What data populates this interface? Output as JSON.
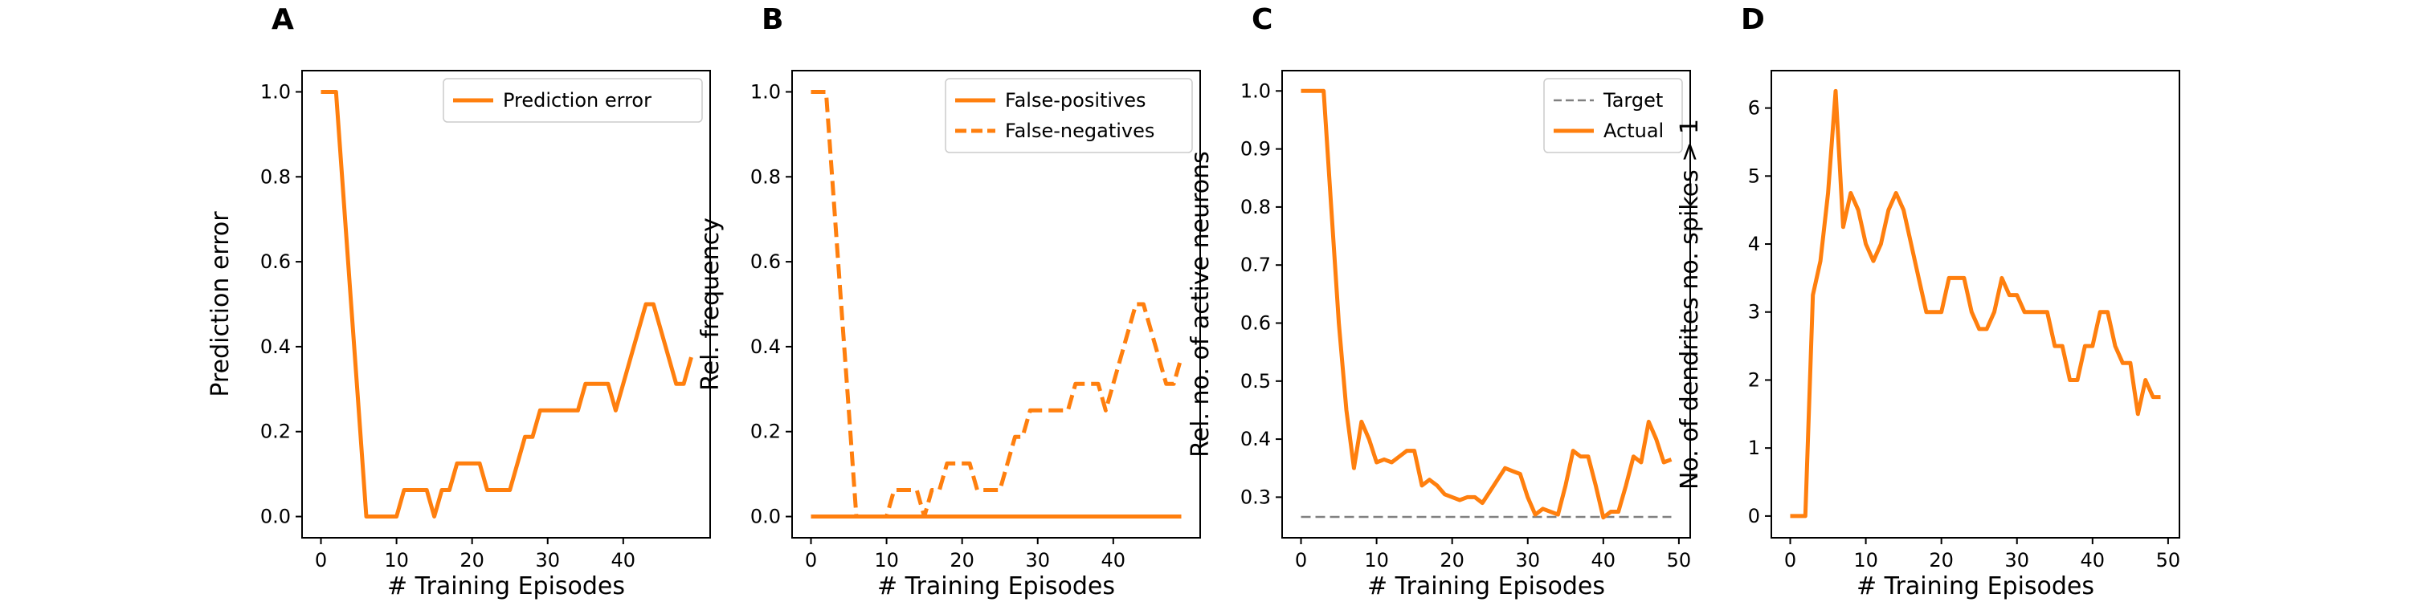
{
  "colors": {
    "series": "#ff7f0e",
    "target": "#808080",
    "axis": "#000000"
  },
  "chart_data": [
    {
      "panel_label": "A",
      "type": "line",
      "xlabel": "# Training Episodes",
      "ylabel": "Prediction error",
      "xlim": [
        -2.5,
        51.5
      ],
      "ylim": [
        -0.05,
        1.05
      ],
      "xticks": [
        0,
        10,
        20,
        30,
        40
      ],
      "yticks": [
        0.0,
        0.2,
        0.4,
        0.6,
        0.8,
        1.0
      ],
      "ytick_labels": [
        "0.0",
        "0.2",
        "0.4",
        "0.6",
        "0.8",
        "1.0"
      ],
      "legend_position": "top-right",
      "series": [
        {
          "name": "Prediction error",
          "style": "solid",
          "color": "#ff7f0e",
          "x": [
            0,
            1,
            2,
            3,
            4,
            5,
            6,
            7,
            8,
            9,
            10,
            11,
            12,
            13,
            14,
            15,
            16,
            17,
            18,
            19,
            20,
            21,
            22,
            23,
            24,
            25,
            26,
            27,
            28,
            29,
            30,
            31,
            32,
            33,
            34,
            35,
            36,
            37,
            38,
            39,
            40,
            41,
            42,
            43,
            44,
            45,
            46,
            47,
            48,
            49
          ],
          "y": [
            1.0,
            1.0,
            1.0,
            0.75,
            0.5,
            0.25,
            0.0,
            0.0,
            0.0,
            0.0,
            0.0,
            0.0625,
            0.0625,
            0.0625,
            0.0625,
            0.0,
            0.0625,
            0.0625,
            0.125,
            0.125,
            0.125,
            0.125,
            0.0625,
            0.0625,
            0.0625,
            0.0625,
            0.125,
            0.1875,
            0.1875,
            0.25,
            0.25,
            0.25,
            0.25,
            0.25,
            0.25,
            0.3125,
            0.3125,
            0.3125,
            0.3125,
            0.25,
            0.3125,
            0.375,
            0.4375,
            0.5,
            0.5,
            0.4375,
            0.375,
            0.3125,
            0.3125,
            0.375
          ]
        }
      ]
    },
    {
      "panel_label": "B",
      "type": "line",
      "xlabel": "# Training Episodes",
      "ylabel": "Rel. frequency",
      "xlim": [
        -2.5,
        51.5
      ],
      "ylim": [
        -0.05,
        1.05
      ],
      "xticks": [
        0,
        10,
        20,
        30,
        40
      ],
      "yticks": [
        0.0,
        0.2,
        0.4,
        0.6,
        0.8,
        1.0
      ],
      "ytick_labels": [
        "0.0",
        "0.2",
        "0.4",
        "0.6",
        "0.8",
        "1.0"
      ],
      "legend_position": "top-right",
      "series": [
        {
          "name": "False-positives",
          "style": "solid",
          "color": "#ff7f0e",
          "x": [
            0,
            1,
            2,
            3,
            4,
            5,
            6,
            7,
            8,
            9,
            10,
            11,
            12,
            13,
            14,
            15,
            16,
            17,
            18,
            19,
            20,
            21,
            22,
            23,
            24,
            25,
            26,
            27,
            28,
            29,
            30,
            31,
            32,
            33,
            34,
            35,
            36,
            37,
            38,
            39,
            40,
            41,
            42,
            43,
            44,
            45,
            46,
            47,
            48,
            49
          ],
          "y": [
            0,
            0,
            0,
            0,
            0,
            0,
            0,
            0,
            0,
            0,
            0,
            0,
            0,
            0,
            0,
            0,
            0,
            0,
            0,
            0,
            0,
            0,
            0,
            0,
            0,
            0,
            0,
            0,
            0,
            0,
            0,
            0,
            0,
            0,
            0,
            0,
            0,
            0,
            0,
            0,
            0,
            0,
            0,
            0,
            0,
            0,
            0,
            0,
            0,
            0
          ]
        },
        {
          "name": "False-negatives",
          "style": "dashed",
          "color": "#ff7f0e",
          "x": [
            0,
            1,
            2,
            3,
            4,
            5,
            6,
            7,
            8,
            9,
            10,
            11,
            12,
            13,
            14,
            15,
            16,
            17,
            18,
            19,
            20,
            21,
            22,
            23,
            24,
            25,
            26,
            27,
            28,
            29,
            30,
            31,
            32,
            33,
            34,
            35,
            36,
            37,
            38,
            39,
            40,
            41,
            42,
            43,
            44,
            45,
            46,
            47,
            48,
            49
          ],
          "y": [
            1.0,
            1.0,
            1.0,
            0.75,
            0.5,
            0.25,
            0.0,
            0.0,
            0.0,
            0.0,
            0.0,
            0.0625,
            0.0625,
            0.0625,
            0.0625,
            0.0,
            0.0625,
            0.0625,
            0.125,
            0.125,
            0.125,
            0.125,
            0.0625,
            0.0625,
            0.0625,
            0.0625,
            0.125,
            0.1875,
            0.1875,
            0.25,
            0.25,
            0.25,
            0.25,
            0.25,
            0.25,
            0.3125,
            0.3125,
            0.3125,
            0.3125,
            0.25,
            0.3125,
            0.375,
            0.4375,
            0.5,
            0.5,
            0.4375,
            0.375,
            0.3125,
            0.3125,
            0.375
          ]
        }
      ]
    },
    {
      "panel_label": "C",
      "type": "line",
      "xlabel": "# Training Episodes",
      "ylabel": "Rel. no. of active neurons",
      "xlim": [
        -2.5,
        51.5
      ],
      "ylim": [
        0.23,
        1.035
      ],
      "xticks": [
        0,
        10,
        20,
        30,
        40,
        50
      ],
      "yticks": [
        0.3,
        0.4,
        0.5,
        0.6,
        0.7,
        0.8,
        0.9,
        1.0
      ],
      "ytick_labels": [
        "0.3",
        "0.4",
        "0.5",
        "0.6",
        "0.7",
        "0.8",
        "0.9",
        "1.0"
      ],
      "legend_position": "top-right",
      "series": [
        {
          "name": "Target",
          "style": "dashed",
          "color": "#808080",
          "x": [
            0,
            49
          ],
          "y": [
            0.266,
            0.266
          ]
        },
        {
          "name": "Actual",
          "style": "solid",
          "color": "#ff7f0e",
          "x": [
            0,
            1,
            2,
            3,
            4,
            5,
            6,
            7,
            8,
            9,
            10,
            11,
            12,
            13,
            14,
            15,
            16,
            17,
            18,
            19,
            20,
            21,
            22,
            23,
            24,
            25,
            26,
            27,
            28,
            29,
            30,
            31,
            32,
            33,
            34,
            35,
            36,
            37,
            38,
            39,
            40,
            41,
            42,
            43,
            44,
            45,
            46,
            47,
            48,
            49
          ],
          "y": [
            1.0,
            1.0,
            1.0,
            1.0,
            0.8,
            0.6,
            0.45,
            0.35,
            0.43,
            0.4,
            0.36,
            0.365,
            0.36,
            0.37,
            0.38,
            0.38,
            0.32,
            0.33,
            0.32,
            0.305,
            0.3,
            0.295,
            0.3,
            0.3,
            0.29,
            0.31,
            0.33,
            0.35,
            0.345,
            0.34,
            0.3,
            0.27,
            0.28,
            0.275,
            0.27,
            0.32,
            0.38,
            0.37,
            0.37,
            0.32,
            0.265,
            0.275,
            0.275,
            0.32,
            0.37,
            0.36,
            0.43,
            0.4,
            0.36,
            0.365
          ]
        }
      ]
    },
    {
      "panel_label": "D",
      "type": "line",
      "xlabel": "# Training Episodes",
      "ylabel": "No. of dendrites no. spikes > 1",
      "xlim": [
        -2.5,
        51.5
      ],
      "ylim": [
        -0.32,
        6.55
      ],
      "xticks": [
        0,
        10,
        20,
        30,
        40,
        50
      ],
      "yticks": [
        0,
        1,
        2,
        3,
        4,
        5,
        6
      ],
      "ytick_labels": [
        "0",
        "1",
        "2",
        "3",
        "4",
        "5",
        "6"
      ],
      "legend_position": "none",
      "series": [
        {
          "style": "solid",
          "color": "#ff7f0e",
          "x": [
            0,
            1,
            2,
            3,
            4,
            5,
            6,
            7,
            8,
            9,
            10,
            11,
            12,
            13,
            14,
            15,
            16,
            17,
            18,
            19,
            20,
            21,
            22,
            23,
            24,
            25,
            26,
            27,
            28,
            29,
            30,
            31,
            32,
            33,
            34,
            35,
            36,
            37,
            38,
            39,
            40,
            41,
            42,
            43,
            44,
            45,
            46,
            47,
            48,
            49
          ],
          "y": [
            0.0,
            0.0,
            0.0,
            3.25,
            3.75,
            4.75,
            6.25,
            4.25,
            4.75,
            4.5,
            4.0,
            3.75,
            4.0,
            4.5,
            4.75,
            4.5,
            4.0,
            3.5,
            3.0,
            3.0,
            3.0,
            3.5,
            3.5,
            3.5,
            3.0,
            2.75,
            2.75,
            3.0,
            3.5,
            3.25,
            3.25,
            3.0,
            3.0,
            3.0,
            3.0,
            2.5,
            2.5,
            2.0,
            2.0,
            2.5,
            2.5,
            3.0,
            3.0,
            2.5,
            2.25,
            2.25,
            1.5,
            2.0,
            1.75,
            1.75
          ]
        }
      ]
    }
  ]
}
